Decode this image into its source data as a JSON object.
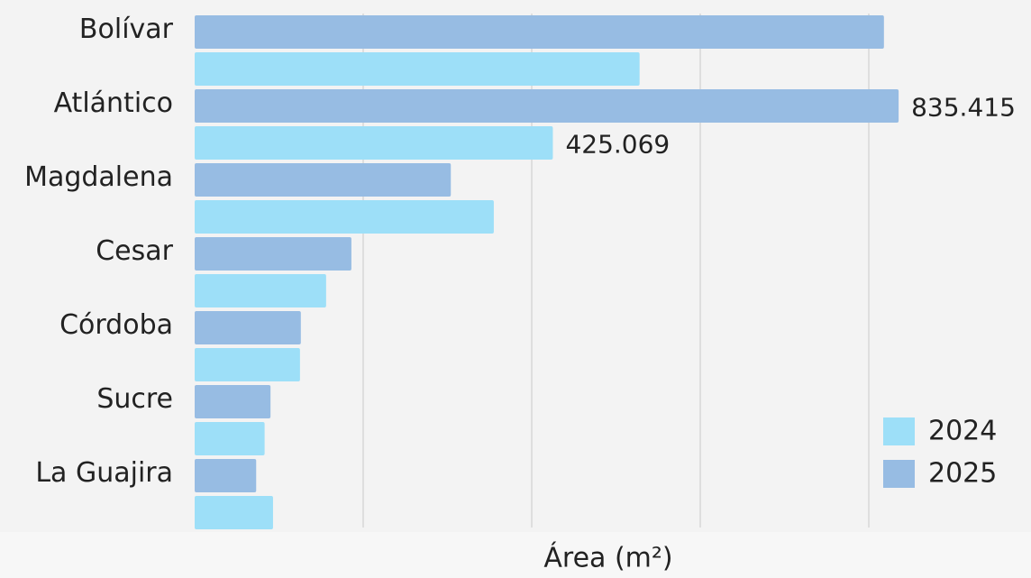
{
  "chart_data": {
    "type": "bar",
    "orientation": "horizontal",
    "categories": [
      "Bolívar",
      "Atlántico",
      "Magdalena",
      "Cesar",
      "Córdoba",
      "Sucre",
      "La Guajira"
    ],
    "series": [
      {
        "name": "2024",
        "color": "#9ddff8",
        "values": [
          528000,
          425069,
          355000,
          156000,
          125000,
          83000,
          93000
        ],
        "value_labels": [
          null,
          "425.069",
          null,
          null,
          null,
          null,
          null
        ]
      },
      {
        "name": "2025",
        "color": "#97bce3",
        "values": [
          818000,
          835415,
          304000,
          186000,
          126000,
          90000,
          73000
        ],
        "value_labels": [
          null,
          "835.415",
          null,
          null,
          null,
          null,
          null
        ]
      }
    ],
    "xlabel": "Área (m²)",
    "xlim": [
      0,
      1000000
    ],
    "xticks": [
      200000,
      400000,
      600000,
      800000
    ],
    "grid": true,
    "legend": "lower right"
  }
}
